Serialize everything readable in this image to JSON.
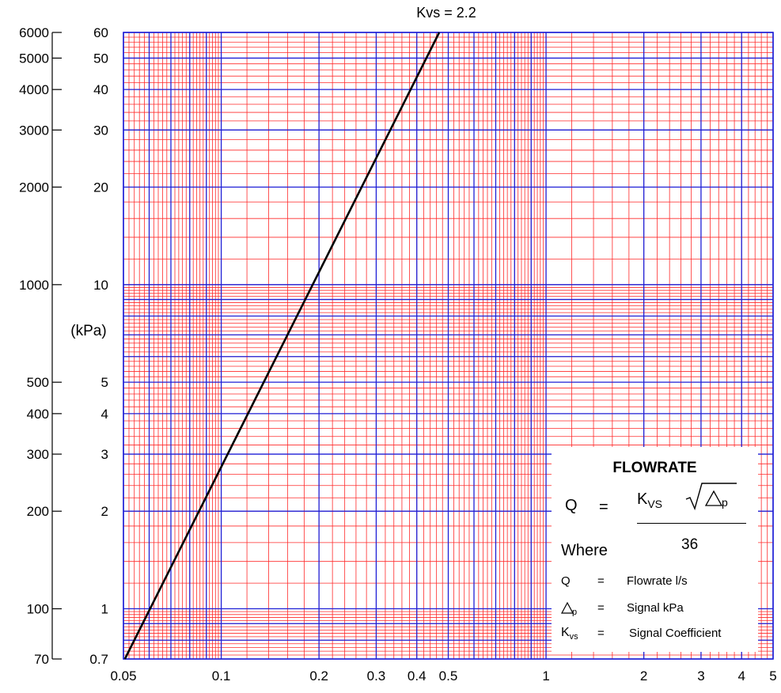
{
  "chart_data": {
    "type": "line",
    "title": "Kvs = 2.2",
    "x_scale": "log",
    "y_scale": "log",
    "xlim": [
      0.05,
      5
    ],
    "ylim_bar": [
      0.7,
      60
    ],
    "ylim_kpa": [
      70,
      6000
    ],
    "x_ticks": [
      {
        "v": 0.05,
        "label": "0.05"
      },
      {
        "v": 0.1,
        "label": "0.1"
      },
      {
        "v": 0.2,
        "label": "0.2"
      },
      {
        "v": 0.3,
        "label": "0.3"
      },
      {
        "v": 0.4,
        "label": "0.4"
      },
      {
        "v": 0.5,
        "label": "0.5"
      },
      {
        "v": 1,
        "label": "1"
      },
      {
        "v": 2,
        "label": "2"
      },
      {
        "v": 3,
        "label": "3"
      },
      {
        "v": 4,
        "label": "4"
      },
      {
        "v": 5,
        "label": "5"
      }
    ],
    "y_ticks_bar": [
      {
        "v": 0.7,
        "label": "0.7"
      },
      {
        "v": 1,
        "label": "1"
      },
      {
        "v": 2,
        "label": "2"
      },
      {
        "v": 3,
        "label": "3"
      },
      {
        "v": 4,
        "label": "4"
      },
      {
        "v": 5,
        "label": "5"
      },
      {
        "v": 10,
        "label": "10"
      },
      {
        "v": 20,
        "label": "20"
      },
      {
        "v": 30,
        "label": "30"
      },
      {
        "v": 40,
        "label": "40"
      },
      {
        "v": 50,
        "label": "50"
      },
      {
        "v": 60,
        "label": "60"
      }
    ],
    "y_ticks_kpa": [
      {
        "v": 70,
        "label": "70"
      },
      {
        "v": 100,
        "label": "100"
      },
      {
        "v": 200,
        "label": "200"
      },
      {
        "v": 300,
        "label": "300"
      },
      {
        "v": 400,
        "label": "400"
      },
      {
        "v": 500,
        "label": "500"
      },
      {
        "v": 1000,
        "label": "1000"
      },
      {
        "v": 2000,
        "label": "2000"
      },
      {
        "v": 3000,
        "label": "3000"
      },
      {
        "v": 4000,
        "label": "4000"
      },
      {
        "v": 5000,
        "label": "5000"
      },
      {
        "v": 6000,
        "label": "6000"
      }
    ],
    "y_unit_label": "(kPa)",
    "series": [
      {
        "points": [
          [
            0.0505,
            0.7
          ],
          [
            0.469,
            60
          ]
        ]
      }
    ],
    "grid": true,
    "colors": {
      "minor_grid": "#ff2a2a",
      "major_grid": "#1f1fd6",
      "line": "#000000"
    }
  },
  "legend": {
    "title": "FLOWRATE",
    "q": "Q",
    "eq": "=",
    "kvs": "K",
    "kvs_sub": "VS",
    "delta_sub": "p",
    "denominator": "36",
    "where": "Where",
    "rows": [
      {
        "sym": "Q",
        "eq": "=",
        "desc": "Flowrate l/s"
      },
      {
        "sym": "△p",
        "eq": "=",
        "desc": "Signal kPa"
      },
      {
        "sym": "Kvs",
        "eq": "=",
        "desc": "Signal Coefficient"
      }
    ]
  }
}
